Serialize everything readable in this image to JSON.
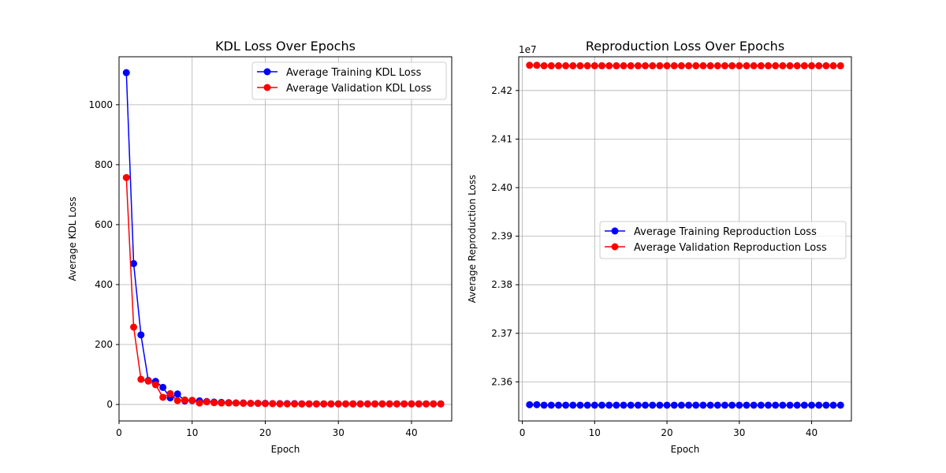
{
  "chart_data": [
    {
      "type": "line",
      "title": "KDL Loss Over Epochs",
      "xlabel": "Epoch",
      "ylabel": "Average KDL Loss",
      "xlim": [
        0,
        45.5
      ],
      "ylim": [
        -55,
        1160
      ],
      "xticks": [
        0,
        10,
        20,
        30,
        40
      ],
      "xtick_labels": [
        "0",
        "10",
        "20",
        "30",
        "40"
      ],
      "yticks": [
        0,
        200,
        400,
        600,
        800,
        1000
      ],
      "ytick_labels": [
        "0",
        "200",
        "400",
        "600",
        "800",
        "1000"
      ],
      "offset_label": "",
      "grid": true,
      "legend_position": "upper right",
      "x": [
        1,
        2,
        3,
        4,
        5,
        6,
        7,
        8,
        9,
        10,
        11,
        12,
        13,
        14,
        15,
        16,
        17,
        18,
        19,
        20,
        21,
        22,
        23,
        24,
        25,
        26,
        27,
        28,
        29,
        30,
        31,
        32,
        33,
        34,
        35,
        36,
        37,
        38,
        39,
        40,
        41,
        42,
        43,
        44
      ],
      "series": [
        {
          "name": "Average Training KDL Loss",
          "color": "#0000ff",
          "values": [
            1107,
            470,
            232,
            80,
            77,
            57,
            22,
            35,
            12,
            13,
            12,
            10,
            8,
            7,
            6,
            5,
            5,
            4,
            4,
            4,
            3,
            3,
            3,
            3,
            2,
            2,
            2,
            2,
            2,
            2,
            2,
            2,
            2,
            2,
            2,
            2,
            2,
            2,
            2,
            2,
            2,
            2,
            2,
            2
          ]
        },
        {
          "name": "Average Validation KDL Loss",
          "color": "#ff0000",
          "values": [
            757,
            258,
            84,
            78,
            66,
            24,
            36,
            13,
            15,
            14,
            5,
            9,
            6,
            5,
            5,
            5,
            4,
            4,
            4,
            3,
            3,
            2,
            2,
            2,
            2,
            2,
            2,
            2,
            2,
            2,
            2,
            2,
            2,
            2,
            2,
            2,
            2,
            2,
            2,
            2,
            2,
            2,
            2,
            2
          ]
        }
      ]
    },
    {
      "type": "line",
      "title": "Reproduction Loss Over Epochs",
      "xlabel": "Epoch",
      "ylabel": "Average Reproduction Loss",
      "xlim": [
        -0.5,
        45.5
      ],
      "ylim": [
        23.5195,
        24.2695
      ],
      "xticks": [
        0,
        10,
        20,
        30,
        40
      ],
      "xtick_labels": [
        "0",
        "10",
        "20",
        "30",
        "40"
      ],
      "yticks": [
        23.6,
        23.7,
        23.8,
        23.9,
        24.0,
        24.1,
        24.2
      ],
      "ytick_labels": [
        "2.36",
        "2.37",
        "2.38",
        "2.39",
        "2.40",
        "2.41",
        "2.42"
      ],
      "offset_label": "1e7",
      "grid": true,
      "legend_position": "center right",
      "x": [
        1,
        2,
        3,
        4,
        5,
        6,
        7,
        8,
        9,
        10,
        11,
        12,
        13,
        14,
        15,
        16,
        17,
        18,
        19,
        20,
        21,
        22,
        23,
        24,
        25,
        26,
        27,
        28,
        29,
        30,
        31,
        32,
        33,
        34,
        35,
        36,
        37,
        38,
        39,
        40,
        41,
        42,
        43,
        44
      ],
      "series": [
        {
          "name": "Average Training Reproduction Loss",
          "color": "#0000ff",
          "values": [
            23.553,
            23.553,
            23.552,
            23.552,
            23.552,
            23.552,
            23.552,
            23.552,
            23.552,
            23.552,
            23.552,
            23.552,
            23.552,
            23.552,
            23.552,
            23.552,
            23.552,
            23.552,
            23.552,
            23.552,
            23.552,
            23.552,
            23.552,
            23.552,
            23.552,
            23.552,
            23.552,
            23.552,
            23.552,
            23.552,
            23.552,
            23.552,
            23.552,
            23.552,
            23.552,
            23.552,
            23.552,
            23.552,
            23.552,
            23.552,
            23.552,
            23.552,
            23.552,
            23.552
          ]
        },
        {
          "name": "Average Validation Reproduction Loss",
          "color": "#ff0000",
          "values": [
            24.252,
            24.252,
            24.251,
            24.251,
            24.251,
            24.251,
            24.251,
            24.251,
            24.251,
            24.251,
            24.251,
            24.251,
            24.251,
            24.251,
            24.251,
            24.251,
            24.251,
            24.251,
            24.251,
            24.251,
            24.251,
            24.251,
            24.251,
            24.251,
            24.251,
            24.251,
            24.251,
            24.251,
            24.251,
            24.251,
            24.251,
            24.251,
            24.251,
            24.251,
            24.251,
            24.251,
            24.251,
            24.251,
            24.251,
            24.251,
            24.251,
            24.251,
            24.251,
            24.251
          ]
        }
      ]
    }
  ]
}
